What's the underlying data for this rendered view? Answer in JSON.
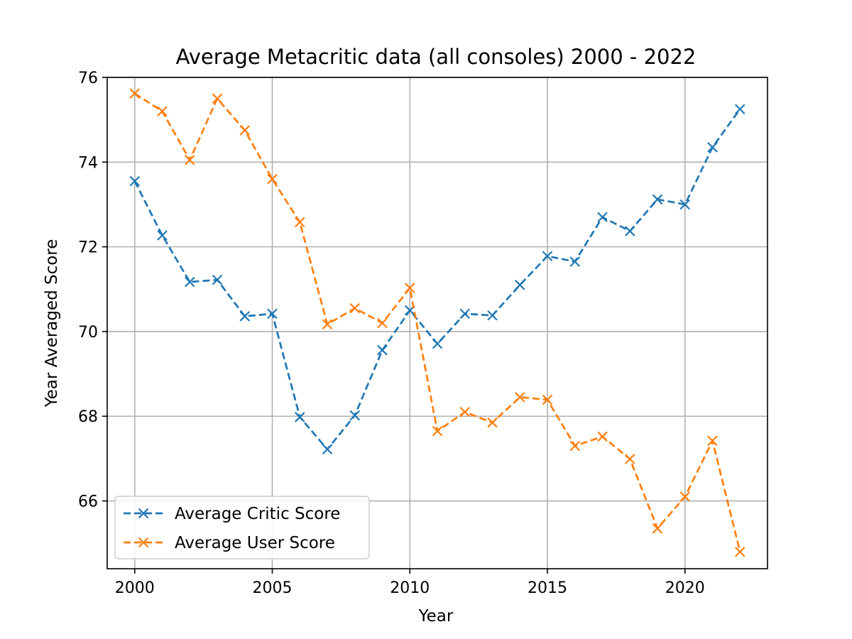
{
  "chart_data": {
    "type": "line",
    "title": "Average Metacritic data (all consoles) 2000 - 2022",
    "xlabel": "Year",
    "ylabel": "Year Averaged Score",
    "xlim": [
      1999.0,
      2023.0
    ],
    "ylim": [
      64.4,
      76.0
    ],
    "xticks": [
      2000,
      2005,
      2010,
      2015,
      2020
    ],
    "yticks": [
      66,
      68,
      70,
      72,
      74,
      76
    ],
    "grid": true,
    "legend_position": "lower-left",
    "x": [
      2000,
      2001,
      2002,
      2003,
      2004,
      2005,
      2006,
      2007,
      2008,
      2009,
      2010,
      2011,
      2012,
      2013,
      2014,
      2015,
      2016,
      2017,
      2018,
      2019,
      2020,
      2021,
      2022
    ],
    "series": [
      {
        "name": "Average Critic Score",
        "color": "#1f77b4",
        "values": [
          73.55,
          72.27,
          71.17,
          71.22,
          70.36,
          70.42,
          67.98,
          67.22,
          68.02,
          69.56,
          70.5,
          69.71,
          70.42,
          70.38,
          71.1,
          71.78,
          71.65,
          72.7,
          72.37,
          73.12,
          73.0,
          74.35,
          75.25
        ]
      },
      {
        "name": "Average User Score",
        "color": "#ff7f0e",
        "values": [
          75.62,
          75.2,
          74.05,
          75.5,
          74.75,
          73.6,
          72.58,
          70.17,
          70.55,
          70.2,
          71.03,
          67.65,
          68.1,
          67.85,
          68.45,
          68.39,
          67.3,
          67.52,
          66.99,
          65.35,
          66.1,
          67.42,
          64.8
        ]
      }
    ]
  }
}
